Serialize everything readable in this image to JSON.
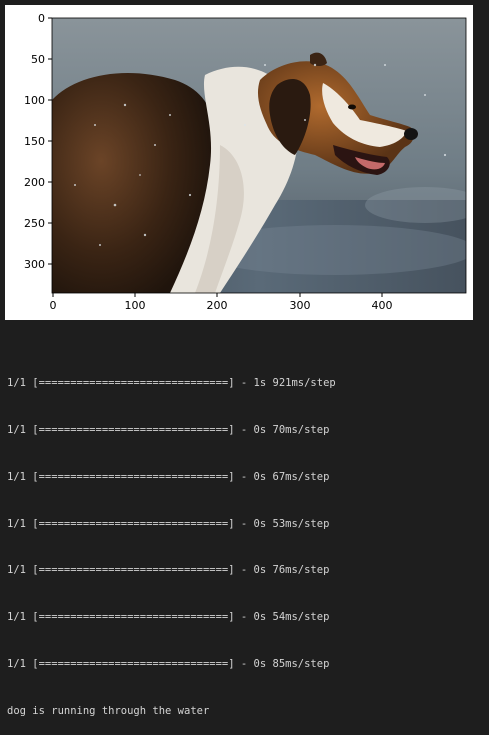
{
  "figure": {
    "x_ticks": [
      "0",
      "100",
      "200",
      "300",
      "400"
    ],
    "y_ticks": [
      "0",
      "50",
      "100",
      "150",
      "200",
      "250",
      "300"
    ],
    "image_content": "photo-dog-running-through-water"
  },
  "output": {
    "lines": [
      "1/1 [==============================] - 1s 921ms/step",
      "1/1 [==============================] - 0s 70ms/step",
      "1/1 [==============================] - 0s 67ms/step",
      "1/1 [==============================] - 0s 53ms/step",
      "1/1 [==============================] - 0s 76ms/step",
      "1/1 [==============================] - 0s 54ms/step",
      "1/1 [==============================] - 0s 85ms/step"
    ],
    "caption": "dog is running through the water"
  },
  "colors": {
    "background": "#1e1e1e",
    "text": "#d4d4d4",
    "panel": "#ffffff"
  }
}
